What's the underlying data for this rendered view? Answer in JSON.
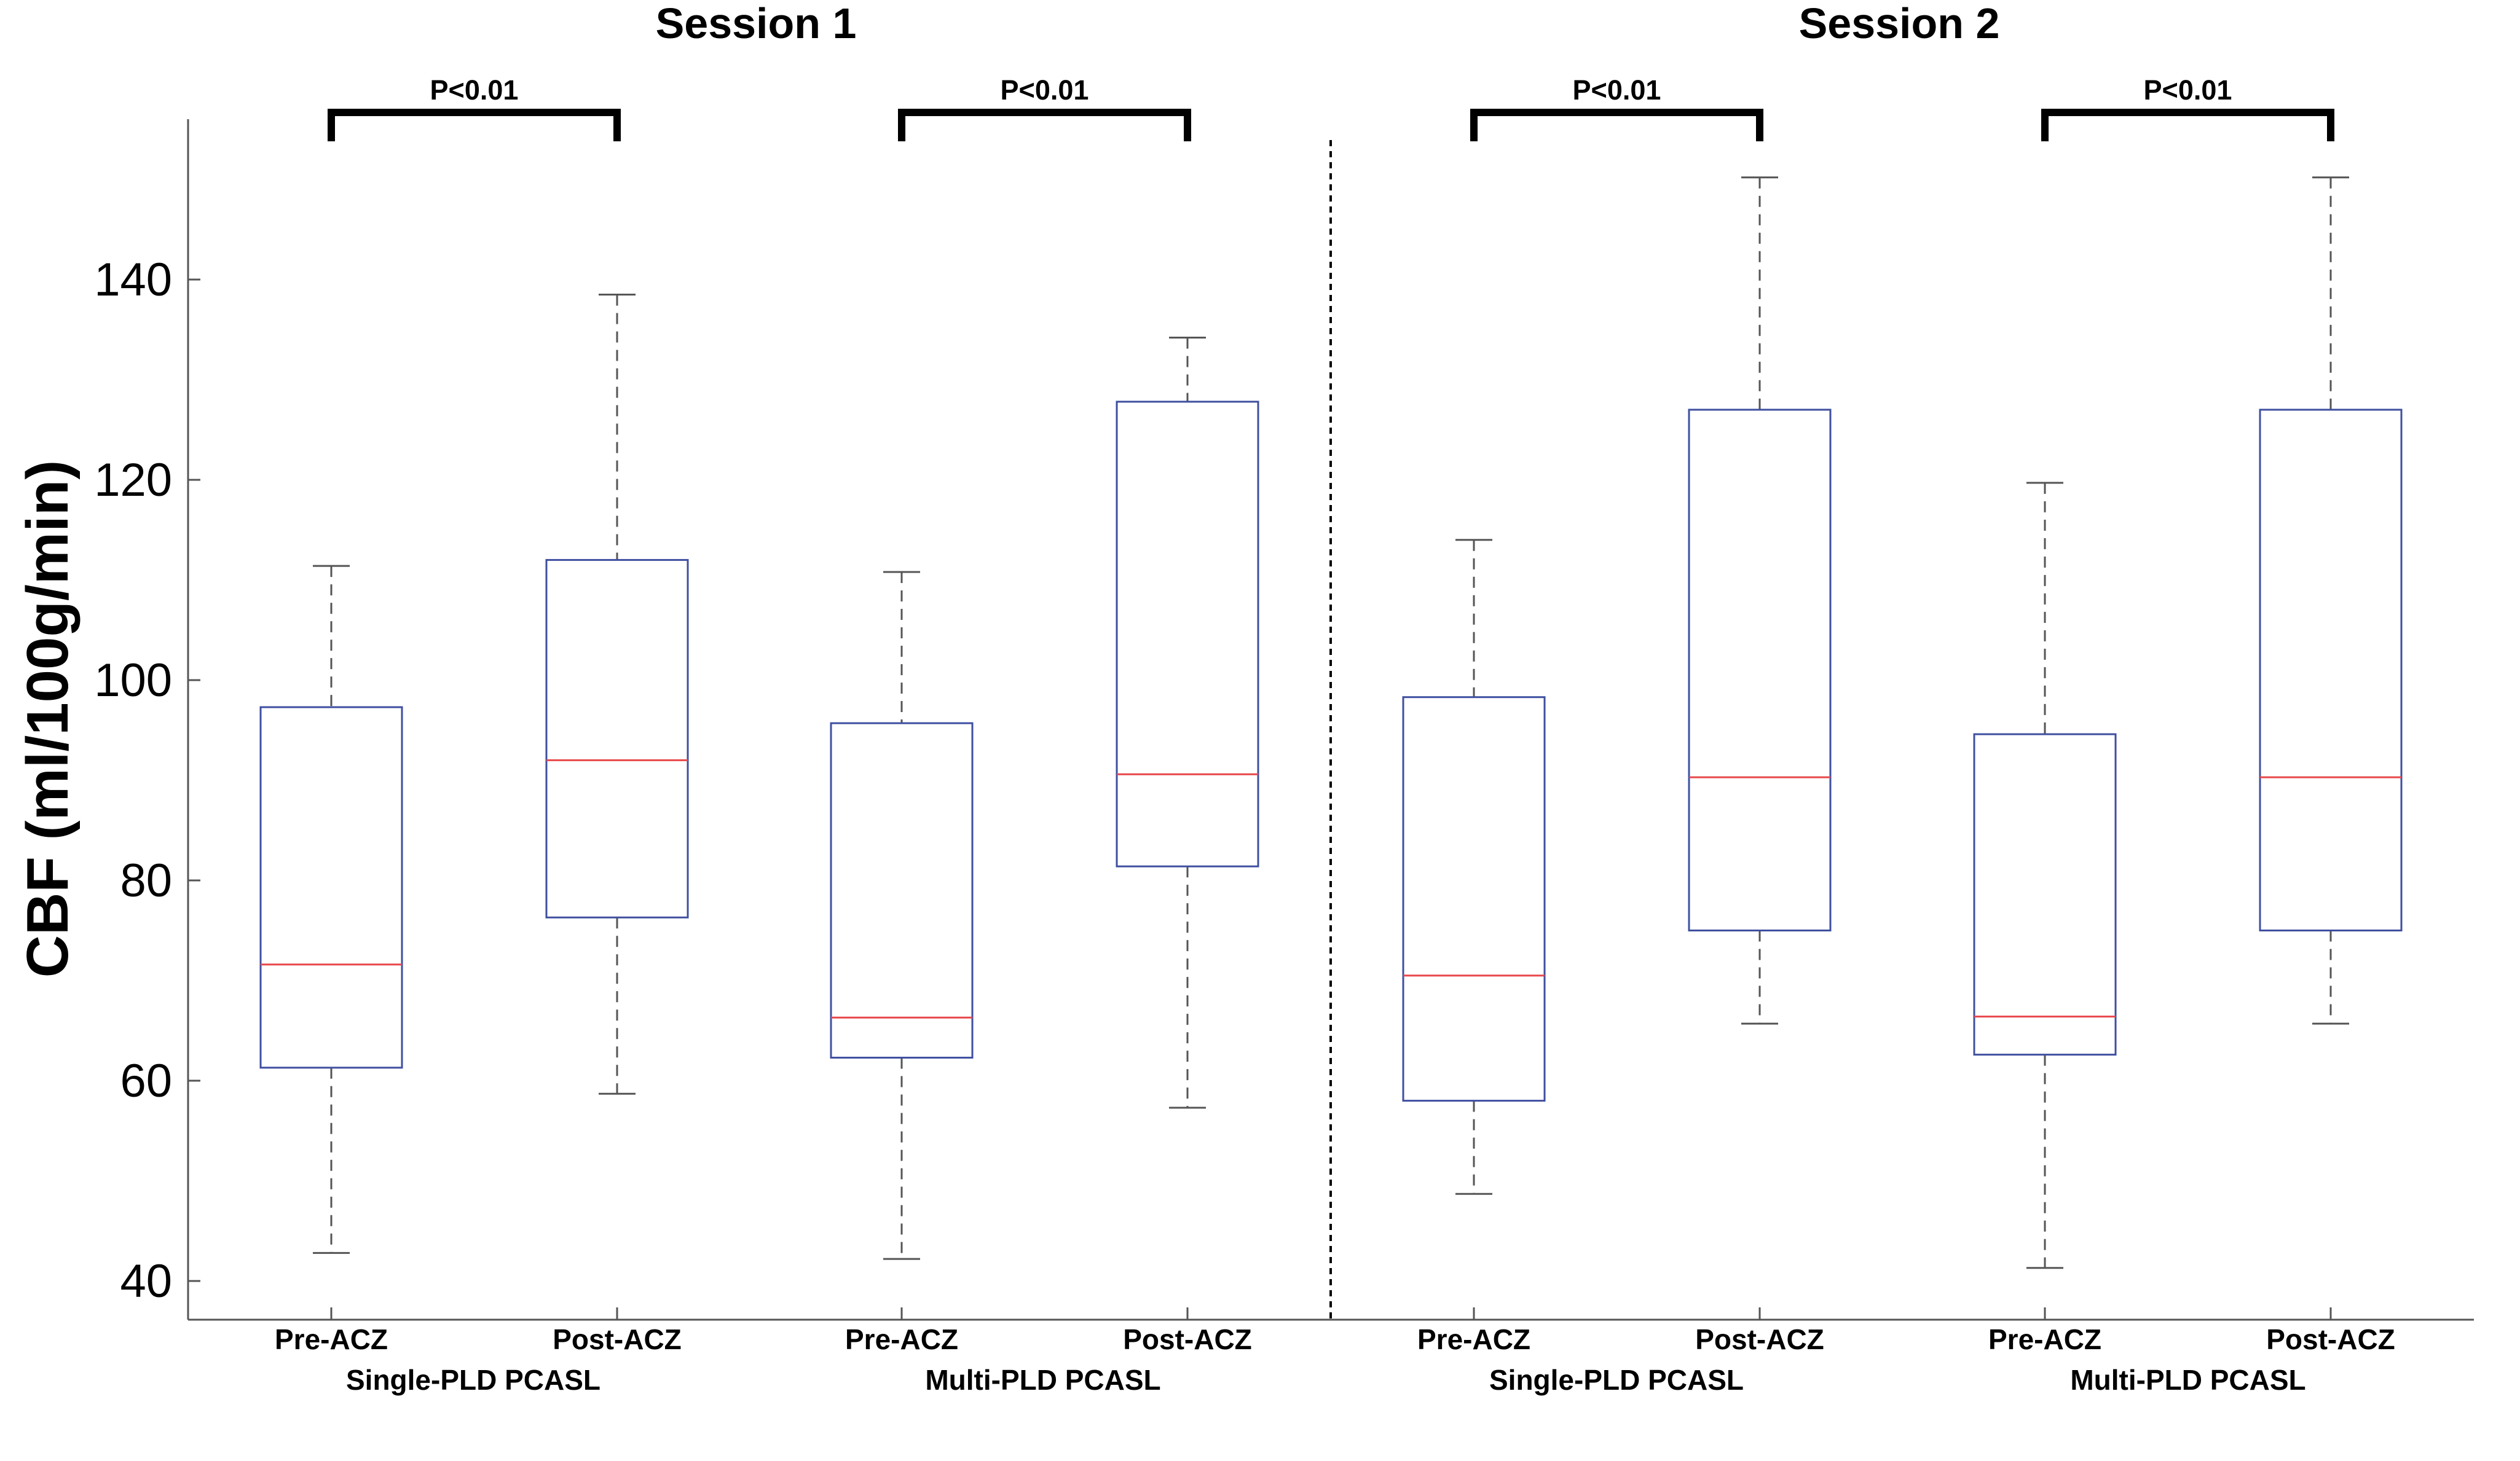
{
  "chart_data": {
    "type": "boxplot",
    "ylabel": "CBF (ml/100g/min)",
    "ylim": [
      36,
      154
    ],
    "yticks": [
      40,
      60,
      80,
      100,
      120,
      140
    ],
    "session_titles": [
      "Session 1",
      "Session 2"
    ],
    "group_labels": [
      "Single-PLD PCASL",
      "Multi-PLD PCASL",
      "Single-PLD PCASL",
      "Multi-PLD PCASL"
    ],
    "boxes": [
      {
        "label": "Pre-ACZ",
        "whisker_low": 42.8,
        "q1": 61.3,
        "median": 71.6,
        "q3": 97.3,
        "whisker_high": 111.4
      },
      {
        "label": "Post-ACZ",
        "whisker_low": 58.7,
        "q1": 76.3,
        "median": 92.0,
        "q3": 112.0,
        "whisker_high": 138.5
      },
      {
        "label": "Pre-ACZ",
        "whisker_low": 42.2,
        "q1": 62.3,
        "median": 66.3,
        "q3": 95.7,
        "whisker_high": 110.8
      },
      {
        "label": "Post-ACZ",
        "whisker_low": 57.3,
        "q1": 81.4,
        "median": 90.6,
        "q3": 127.8,
        "whisker_high": 134.2
      },
      {
        "label": "Pre-ACZ",
        "whisker_low": 48.7,
        "q1": 58.0,
        "median": 70.5,
        "q3": 98.3,
        "whisker_high": 114.0
      },
      {
        "label": "Post-ACZ",
        "whisker_low": 65.7,
        "q1": 75.0,
        "median": 90.3,
        "q3": 127.0,
        "whisker_high": 150.2
      },
      {
        "label": "Pre-ACZ",
        "whisker_low": 41.3,
        "q1": 62.6,
        "median": 66.4,
        "q3": 94.6,
        "whisker_high": 119.7
      },
      {
        "label": "Post-ACZ",
        "whisker_low": 65.7,
        "q1": 75.0,
        "median": 90.3,
        "q3": 127.0,
        "whisker_high": 150.2
      }
    ],
    "significance": [
      {
        "label": "P<0.01",
        "from_box": 0,
        "to_box": 1
      },
      {
        "label": "P<0.01",
        "from_box": 2,
        "to_box": 3
      },
      {
        "label": "P<0.01",
        "from_box": 4,
        "to_box": 5
      },
      {
        "label": "P<0.01",
        "from_box": 6,
        "to_box": 7
      }
    ],
    "colors": {
      "box": "#3f4fa0",
      "median": "#e8474a",
      "whisker": "#555555",
      "axis": "#555555",
      "bracket": "#000000",
      "divider": "#000000"
    }
  }
}
